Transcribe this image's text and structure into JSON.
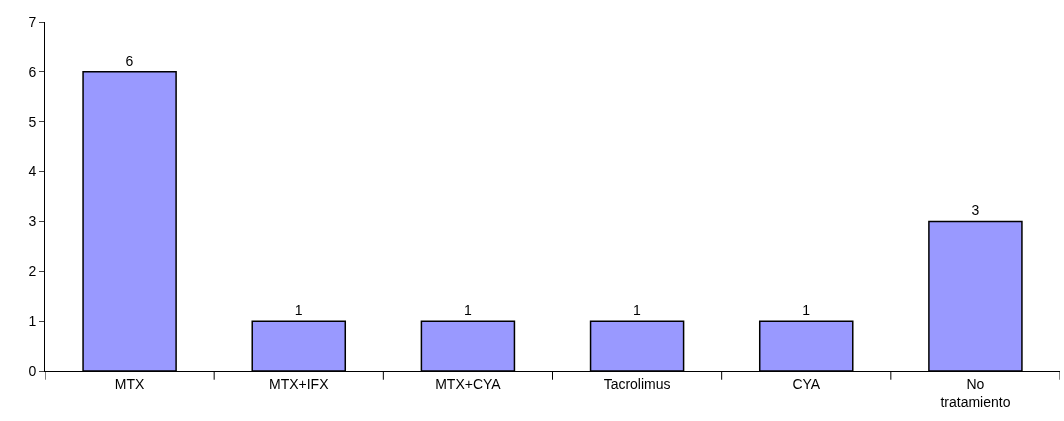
{
  "chart_data": {
    "type": "bar",
    "categories": [
      "MTX",
      "MTX+IFX",
      "MTX+CYA",
      "Tacrolimus",
      "CYA",
      "No tratamiento"
    ],
    "values": [
      6,
      1,
      1,
      1,
      1,
      3
    ],
    "color": "#9999ff",
    "ylim": [
      0,
      7
    ],
    "yticks": [
      0,
      1,
      2,
      3,
      4,
      5,
      6,
      7
    ],
    "data_labels": true
  }
}
